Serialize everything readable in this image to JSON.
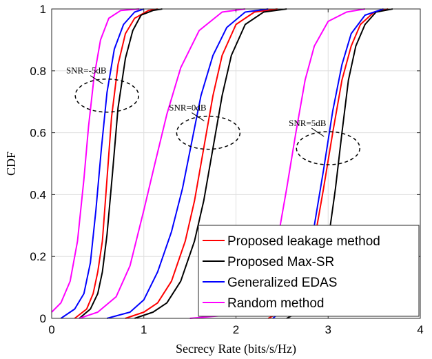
{
  "chart_data": {
    "type": "line",
    "title": "",
    "xlabel": "Secrecy Rate (bits/s/Hz)",
    "ylabel": "CDF",
    "xlim": [
      0,
      4
    ],
    "ylim": [
      0,
      1
    ],
    "xticks": [
      "0",
      "1",
      "2",
      "3",
      "4"
    ],
    "yticks": [
      "0",
      "0.2",
      "0.4",
      "0.6",
      "0.8",
      "1"
    ],
    "grid": true,
    "legend_position": "bottom-right",
    "series": [
      {
        "name": "Proposed leakage method",
        "color": "#ff0000",
        "groups": [
          {
            "snr": "SNR=-5dB",
            "x": [
              0.25,
              0.38,
              0.45,
              0.5,
              0.55,
              0.6,
              0.65,
              0.72,
              0.8,
              0.9,
              1.05,
              1.15
            ],
            "y": [
              0,
              0.03,
              0.08,
              0.15,
              0.25,
              0.45,
              0.65,
              0.82,
              0.92,
              0.97,
              0.995,
              1
            ]
          },
          {
            "snr": "SNR=0dB",
            "x": [
              0.8,
              1.0,
              1.15,
              1.3,
              1.45,
              1.55,
              1.65,
              1.75,
              1.85,
              2.0,
              2.2,
              2.45
            ],
            "y": [
              0,
              0.02,
              0.05,
              0.12,
              0.25,
              0.38,
              0.55,
              0.72,
              0.85,
              0.95,
              0.99,
              1
            ]
          },
          {
            "snr": "SNR=5dB",
            "x": [
              2.35,
              2.55,
              2.7,
              2.85,
              2.95,
              3.05,
              3.15,
              3.25,
              3.35,
              3.5,
              3.65
            ],
            "y": [
              0,
              0.03,
              0.1,
              0.25,
              0.42,
              0.6,
              0.77,
              0.88,
              0.95,
              0.99,
              1
            ]
          }
        ]
      },
      {
        "name": "Proposed Max-SR",
        "color": "#000000",
        "groups": [
          {
            "snr": "SNR=-5dB",
            "x": [
              0.3,
              0.42,
              0.5,
              0.55,
              0.6,
              0.66,
              0.72,
              0.8,
              0.88,
              0.97,
              1.1,
              1.2
            ],
            "y": [
              0,
              0.03,
              0.08,
              0.15,
              0.27,
              0.47,
              0.68,
              0.84,
              0.93,
              0.98,
              0.995,
              1
            ]
          },
          {
            "snr": "SNR=0dB",
            "x": [
              0.9,
              1.1,
              1.25,
              1.4,
              1.55,
              1.65,
              1.75,
              1.85,
              1.95,
              2.1,
              2.3,
              2.55
            ],
            "y": [
              0,
              0.02,
              0.05,
              0.12,
              0.25,
              0.38,
              0.55,
              0.72,
              0.85,
              0.95,
              0.99,
              1
            ]
          },
          {
            "snr": "SNR=5dB",
            "x": [
              2.55,
              2.75,
              2.9,
              3.0,
              3.08,
              3.15,
              3.22,
              3.3,
              3.4,
              3.52,
              3.7
            ],
            "y": [
              0,
              0.03,
              0.1,
              0.25,
              0.42,
              0.6,
              0.77,
              0.88,
              0.95,
              0.99,
              1
            ]
          }
        ]
      },
      {
        "name": "Generalized EDAS",
        "color": "#0000ff",
        "groups": [
          {
            "snr": "SNR=-5dB",
            "x": [
              0.1,
              0.25,
              0.35,
              0.42,
              0.48,
              0.54,
              0.6,
              0.68,
              0.78,
              0.9,
              1.0
            ],
            "y": [
              0,
              0.03,
              0.08,
              0.18,
              0.35,
              0.55,
              0.73,
              0.87,
              0.95,
              0.99,
              1
            ]
          },
          {
            "snr": "SNR=0dB",
            "x": [
              0.6,
              0.85,
              1.0,
              1.15,
              1.3,
              1.42,
              1.52,
              1.62,
              1.75,
              1.9,
              2.1,
              2.35
            ],
            "y": [
              0,
              0.02,
              0.06,
              0.15,
              0.28,
              0.42,
              0.57,
              0.72,
              0.85,
              0.94,
              0.99,
              1
            ]
          },
          {
            "snr": "SNR=5dB",
            "x": [
              2.4,
              2.6,
              2.75,
              2.85,
              2.95,
              3.05,
              3.15,
              3.25,
              3.4,
              3.6
            ],
            "y": [
              0,
              0.05,
              0.15,
              0.3,
              0.48,
              0.67,
              0.82,
              0.92,
              0.98,
              1
            ]
          }
        ]
      },
      {
        "name": "Random method",
        "color": "#ff00ff",
        "groups": [
          {
            "snr": "SNR=-5dB",
            "x": [
              0.0,
              0.1,
              0.2,
              0.28,
              0.35,
              0.4,
              0.46,
              0.53,
              0.62,
              0.75,
              0.95
            ],
            "y": [
              0.02,
              0.05,
              0.12,
              0.25,
              0.45,
              0.62,
              0.78,
              0.9,
              0.97,
              0.995,
              1
            ]
          },
          {
            "snr": "SNR=0dB",
            "x": [
              0.3,
              0.5,
              0.7,
              0.85,
              1.0,
              1.12,
              1.25,
              1.4,
              1.6,
              1.85,
              2.1
            ],
            "y": [
              0,
              0.02,
              0.07,
              0.17,
              0.35,
              0.5,
              0.66,
              0.81,
              0.93,
              0.99,
              1
            ]
          },
          {
            "snr": "SNR=5dB",
            "x": [
              1.5,
              1.9,
              2.1,
              2.3,
              2.45,
              2.55,
              2.65,
              2.75,
              2.85,
              3.0,
              3.2,
              3.4
            ],
            "y": [
              0,
              0.01,
              0.03,
              0.1,
              0.25,
              0.42,
              0.6,
              0.77,
              0.88,
              0.96,
              0.99,
              1
            ]
          }
        ]
      }
    ],
    "annotations": [
      {
        "text": "SNR=-5dB",
        "x": 0.6,
        "y": 0.72
      },
      {
        "text": "SNR=0dB",
        "x": 1.7,
        "y": 0.6
      },
      {
        "text": "SNR=5dB",
        "x": 3.0,
        "y": 0.55
      }
    ]
  }
}
